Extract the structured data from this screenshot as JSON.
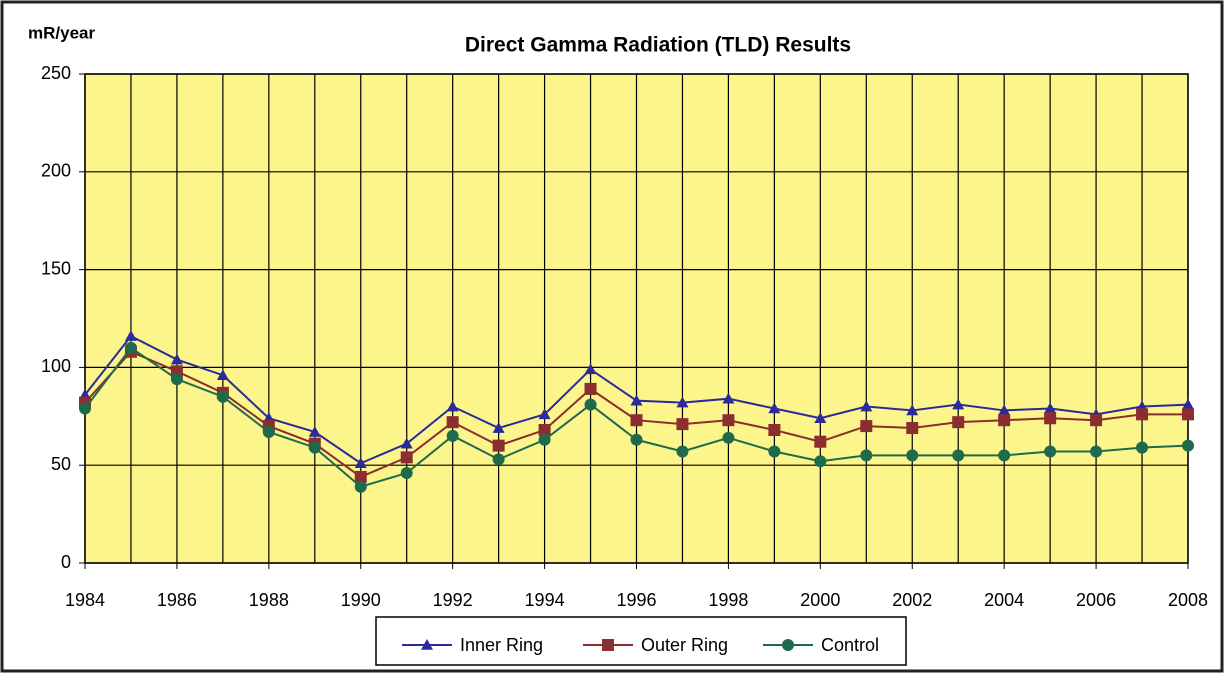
{
  "chart_data": {
    "type": "line",
    "title": "Direct Gamma Radiation (TLD) Results",
    "y_label": "mR/year",
    "x": [
      1984,
      1985,
      1986,
      1987,
      1988,
      1989,
      1990,
      1991,
      1992,
      1993,
      1994,
      1995,
      1996,
      1997,
      1998,
      1999,
      2000,
      2001,
      2002,
      2003,
      2004,
      2005,
      2006,
      2007,
      2008
    ],
    "xlim": [
      1984,
      2008
    ],
    "xticks": [
      1984,
      1986,
      1988,
      1990,
      1992,
      1994,
      1996,
      1998,
      2000,
      2002,
      2004,
      2006,
      2008
    ],
    "ylim": [
      0,
      250
    ],
    "yticks": [
      0,
      50,
      100,
      150,
      200,
      250
    ],
    "grid": true,
    "legend": "bottom",
    "series": [
      {
        "name": "Inner Ring",
        "color": "#2a2a9a",
        "marker": "triangle",
        "values": [
          86,
          116,
          104,
          96,
          74,
          67,
          51,
          61,
          80,
          69,
          76,
          99,
          83,
          82,
          84,
          79,
          74,
          80,
          78,
          81,
          78,
          79,
          76,
          80,
          81
        ]
      },
      {
        "name": "Outer Ring",
        "color": "#8c2e30",
        "marker": "square",
        "values": [
          82,
          108,
          98,
          87,
          70,
          61,
          44,
          54,
          72,
          60,
          68,
          89,
          73,
          71,
          73,
          68,
          62,
          70,
          69,
          72,
          73,
          74,
          73,
          76,
          76
        ]
      },
      {
        "name": "Control",
        "color": "#1e6a4c",
        "marker": "circle",
        "values": [
          79,
          110,
          94,
          85,
          67,
          59,
          39,
          46,
          65,
          53,
          63,
          81,
          63,
          57,
          64,
          57,
          52,
          55,
          55,
          55,
          55,
          57,
          57,
          59,
          60
        ]
      }
    ]
  }
}
